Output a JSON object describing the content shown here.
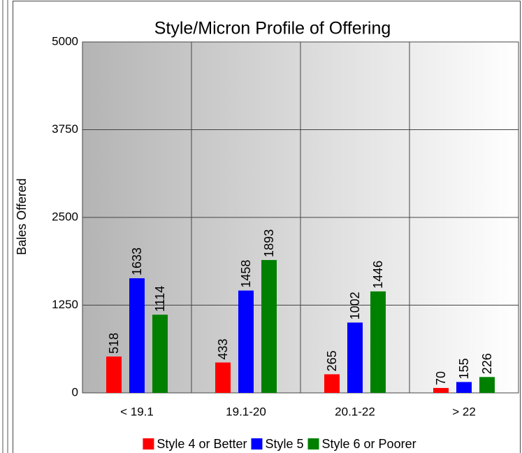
{
  "chart_data": {
    "type": "bar",
    "title": "Style/Micron Profile of Offering",
    "y_label": "Bales Offered",
    "categories": [
      "< 19.1",
      "19.1-20",
      "20.1-22",
      "> 22"
    ],
    "series": [
      {
        "name": "Style 4 or Better",
        "color": "#ff0000",
        "values": [
          518,
          433,
          265,
          70
        ]
      },
      {
        "name": "Style 5",
        "color": "#0000ff",
        "values": [
          1633,
          1458,
          1002,
          155
        ]
      },
      {
        "name": "Style 6 or Poorer",
        "color": "#008000",
        "values": [
          1114,
          1893,
          1446,
          226
        ]
      }
    ],
    "ylim": [
      0,
      5000
    ],
    "yticks": [
      0,
      1250,
      2500,
      3750,
      5000
    ],
    "grid": true,
    "legend": "bottom"
  }
}
